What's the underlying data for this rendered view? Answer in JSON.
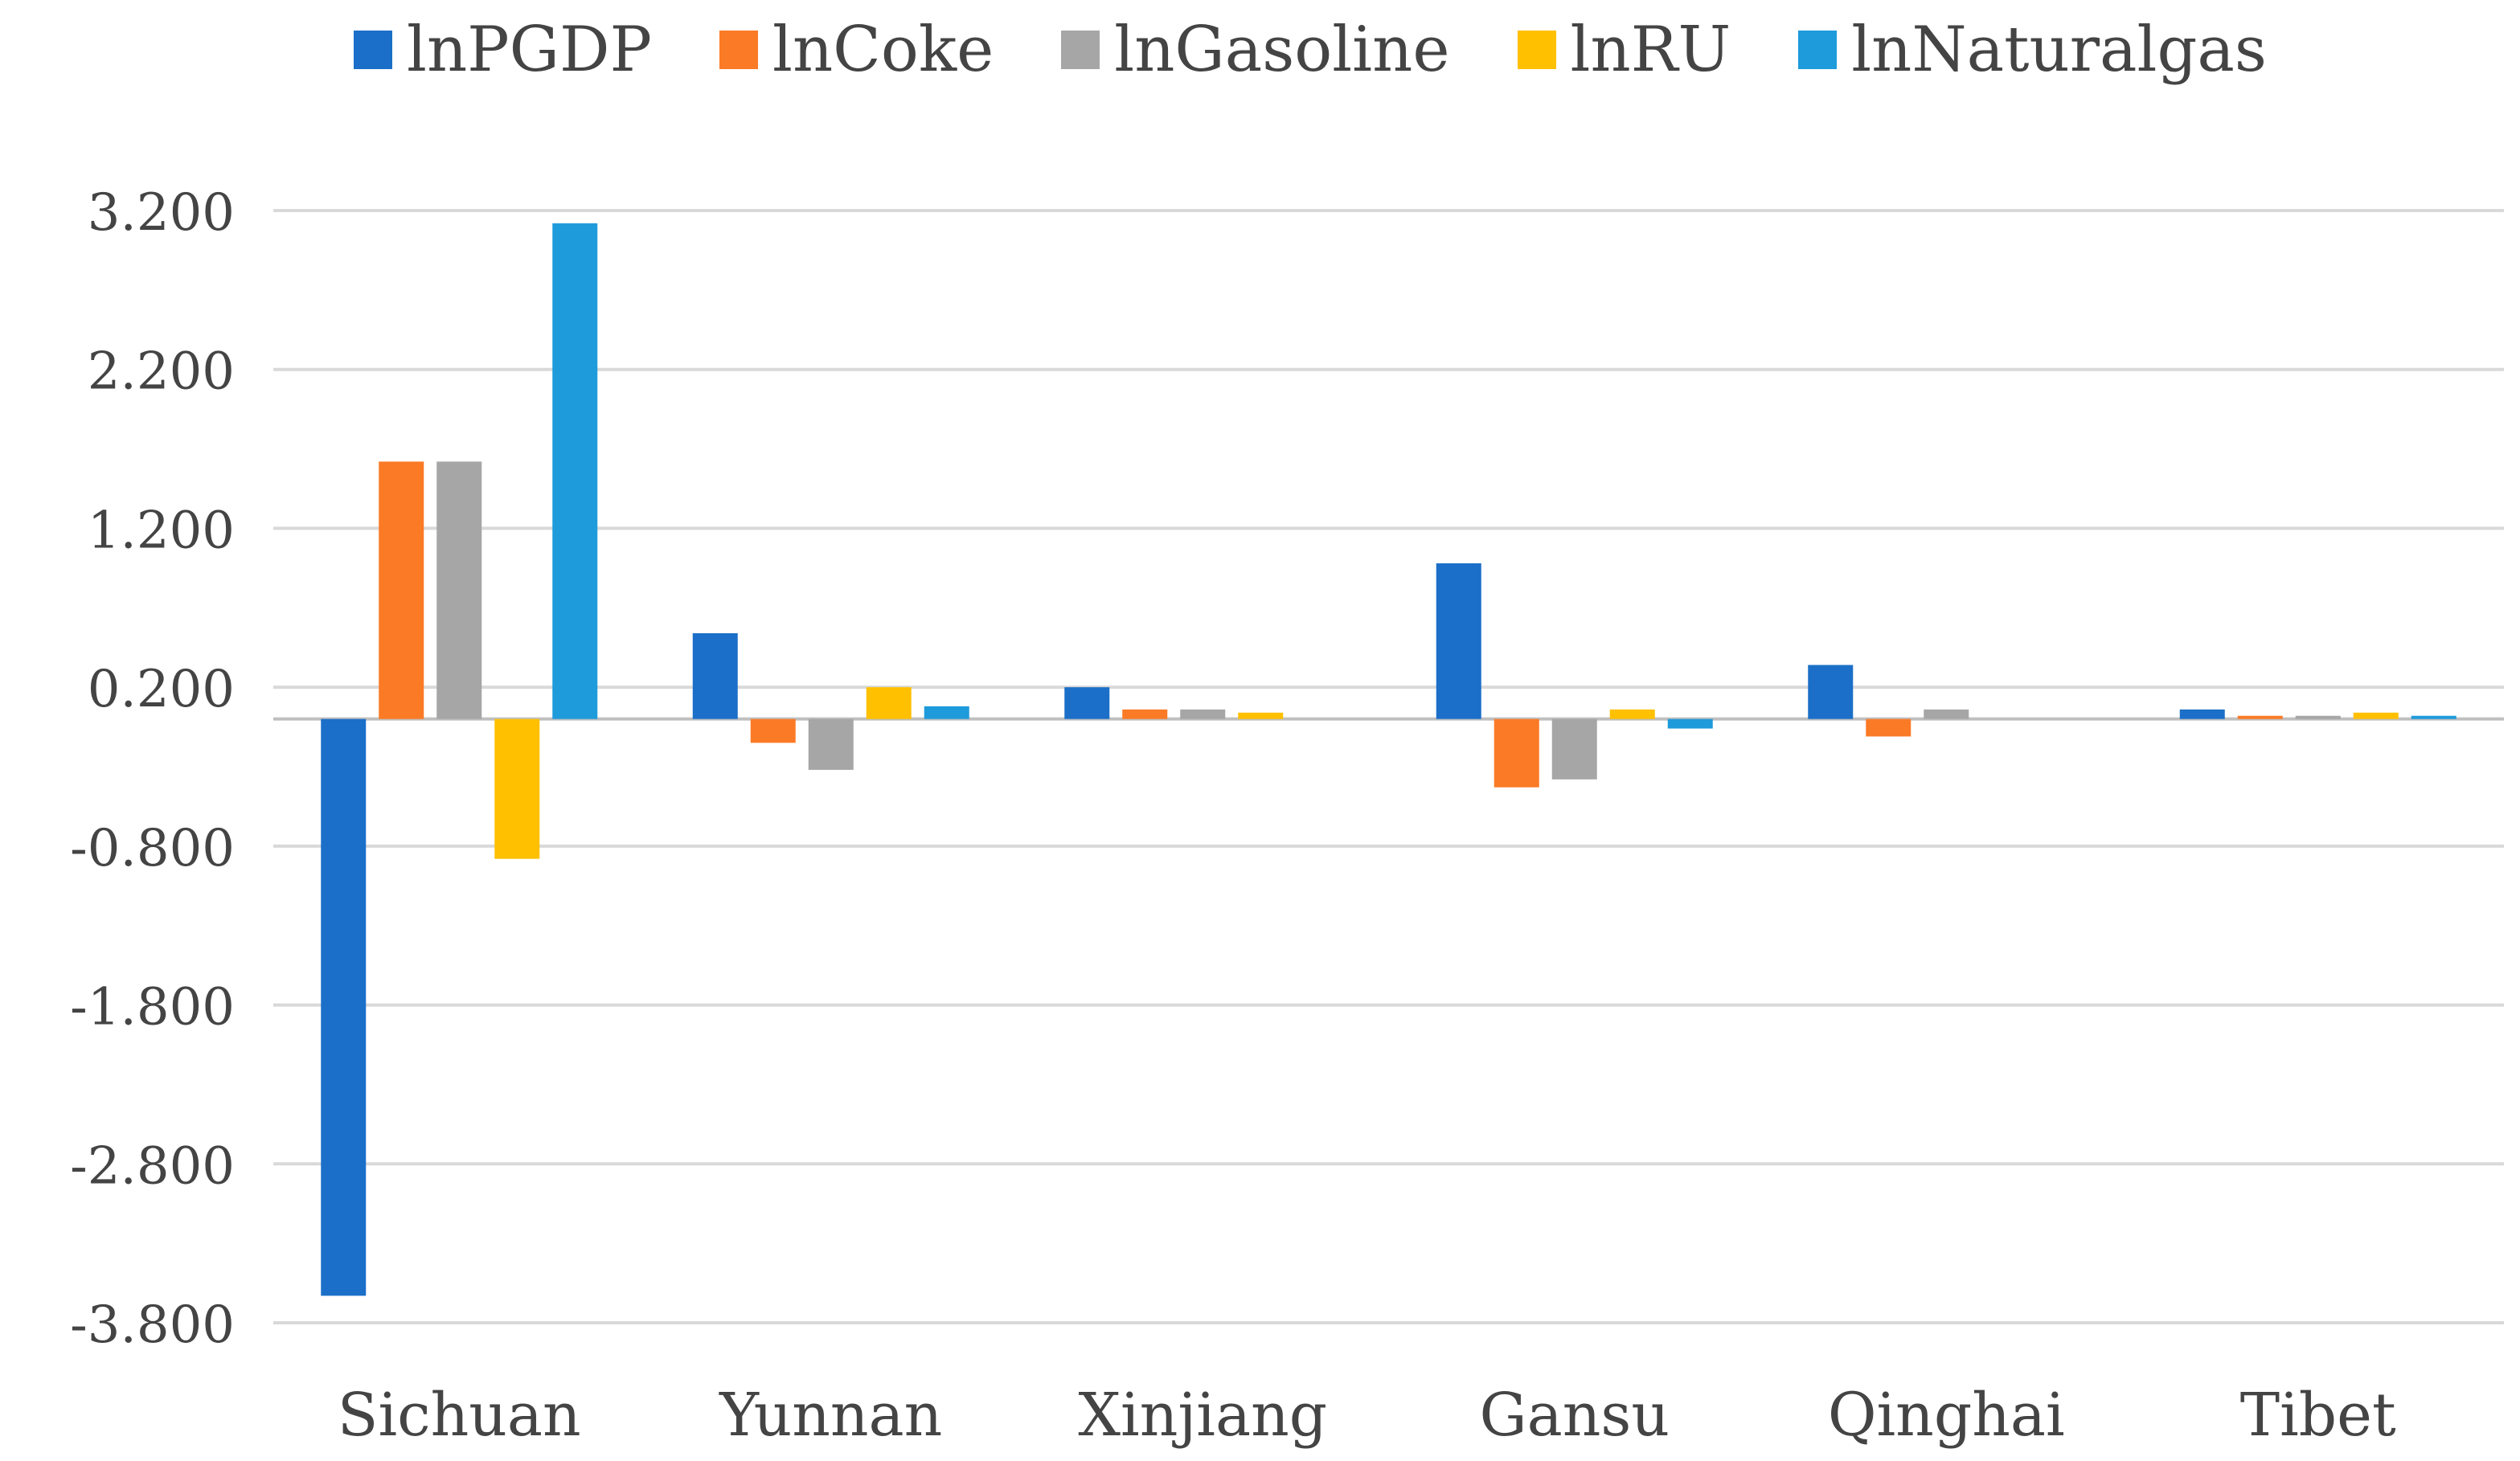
{
  "chart_data": {
    "type": "bar",
    "title": "",
    "xlabel": "",
    "ylabel": "",
    "categories": [
      "Sichuan",
      "Yunnan",
      "Xinjiang",
      "Gansu",
      "Qinghai",
      "Tibet"
    ],
    "series": [
      {
        "name": "lnPGDP",
        "color": "#1B6FC8",
        "values": [
          -3.63,
          0.54,
          0.2,
          0.98,
          0.34,
          0.06
        ]
      },
      {
        "name": "lnCoke",
        "color": "#FB7A26",
        "values": [
          1.62,
          -0.15,
          0.06,
          -0.43,
          -0.11,
          0.02
        ]
      },
      {
        "name": "lnGasoline",
        "color": "#A6A6A6",
        "values": [
          1.62,
          -0.32,
          0.06,
          -0.38,
          0.06,
          0.02
        ]
      },
      {
        "name": "lnRU",
        "color": "#FFC000",
        "values": [
          -0.88,
          0.2,
          0.04,
          0.06,
          0.0,
          0.04
        ]
      },
      {
        "name": "lnNaturalgas",
        "color": "#1E9BDB",
        "values": [
          3.12,
          0.08,
          0.0,
          -0.06,
          0.0,
          0.02
        ]
      }
    ],
    "yticks": [
      "3.200",
      "2.200",
      "1.200",
      "0.200",
      "-0.800",
      "-1.800",
      "-2.800",
      "-3.800"
    ],
    "ylim": [
      -3.8,
      3.2
    ],
    "grid": true,
    "legend_position": "top"
  }
}
